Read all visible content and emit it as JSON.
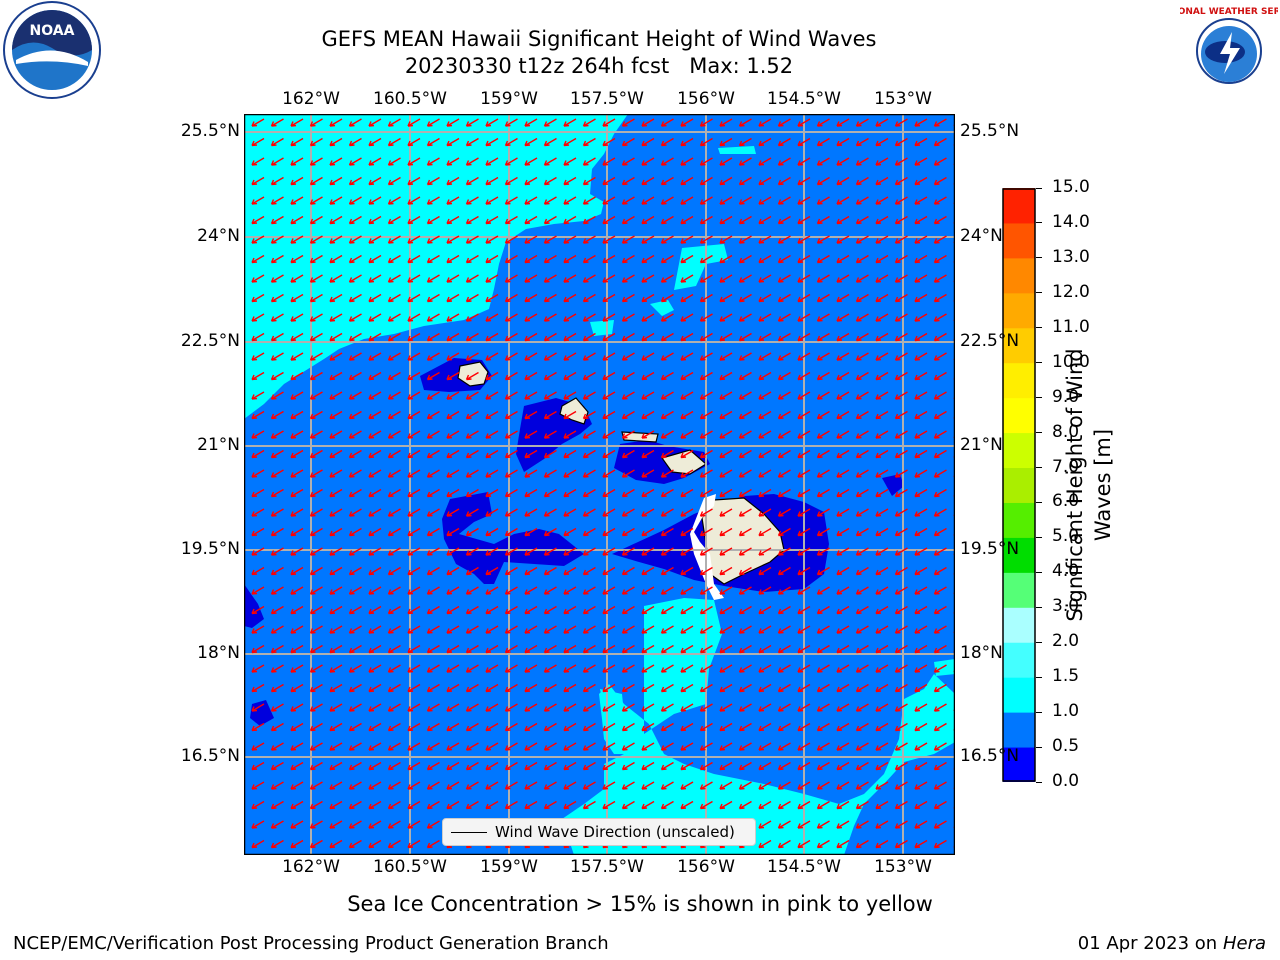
{
  "title_line1": "GEFS MEAN Hawaii Significant Height of Wind Waves",
  "title_line2": "20230330 t12z 264h fcst   Max: 1.52",
  "lon_ticks": [
    "162°W",
    "160.5°W",
    "159°W",
    "157.5°W",
    "156°W",
    "154.5°W",
    "153°W"
  ],
  "lat_ticks": [
    "25.5°N",
    "24°N",
    "22.5°N",
    "21°N",
    "19.5°N",
    "18°N",
    "16.5°N"
  ],
  "colorbar": {
    "label": "Significant Height of Wind Waves [m]",
    "label_line1": "Significant Height of Wind",
    "label_line2": "Waves [m]",
    "ticks": [
      "0.0",
      "0.5",
      "1.0",
      "1.5",
      "2.0",
      "3.0",
      "4.0",
      "5.0",
      "6.0",
      "7.0",
      "8.0",
      "9.0",
      "10.0",
      "11.0",
      "12.0",
      "13.0",
      "14.0",
      "15.0"
    ],
    "colors": [
      "#0000ff",
      "#0077ff",
      "#00ffff",
      "#44ffff",
      "#aaffff",
      "#55ff77",
      "#00dd00",
      "#55ee00",
      "#aaee00",
      "#ccff00",
      "#ffff00",
      "#ffee00",
      "#ffcc00",
      "#ffaa00",
      "#ff8800",
      "#ff5500",
      "#ff2200"
    ]
  },
  "legend": "Wind Wave Direction (unscaled)",
  "caption": "Sea Ice Concentration > 15% is shown in pink to yellow",
  "footer_left": "NCEP/EMC/Verification Post Processing Product Generation Branch",
  "footer_date": "01 Apr 2023 on ",
  "footer_host": "Hera",
  "logos": {
    "left": "NOAA",
    "right": "NATIONAL WEATHER SERVICE"
  }
}
